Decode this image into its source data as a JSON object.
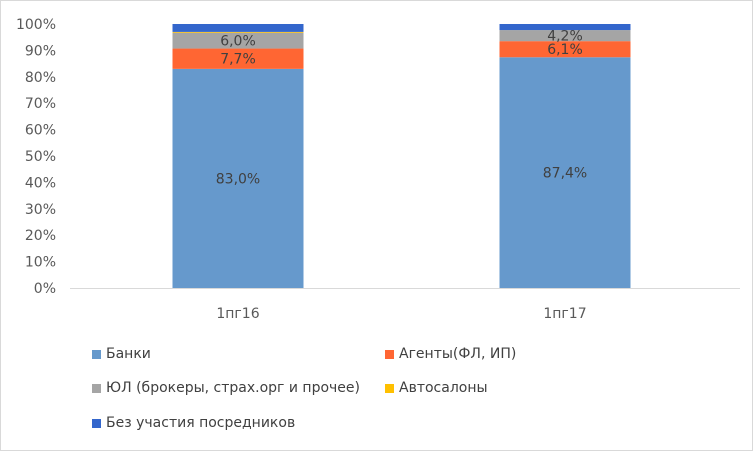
{
  "chart_data": {
    "type": "bar",
    "stacked": true,
    "categories": [
      "1пг16",
      "1пг17"
    ],
    "series": [
      {
        "name": "Банки",
        "values": [
          83.0,
          87.4
        ],
        "labels": [
          "83,0%",
          "87,4%"
        ],
        "color": "#6699cc"
      },
      {
        "name": "Агенты(ФЛ, ИП)",
        "values": [
          7.7,
          6.1
        ],
        "labels": [
          "7,7%",
          "6,1%"
        ],
        "color": "#ff6633"
      },
      {
        "name": "ЮЛ (брокеры, страх.орг и прочее)",
        "values": [
          6.0,
          4.2
        ],
        "labels": [
          "6,0%",
          "4,2%"
        ],
        "color": "#a5a5a5"
      },
      {
        "name": "Автосалоны",
        "values": [
          0.3,
          0.0
        ],
        "labels": [
          "",
          ""
        ],
        "color": "#ffc000"
      },
      {
        "name": "Без участия посредников",
        "values": [
          3.0,
          2.3
        ],
        "labels": [
          "",
          ""
        ],
        "color": "#3366cc"
      }
    ],
    "y_ticks": [
      "0%",
      "10%",
      "20%",
      "30%",
      "40%",
      "50%",
      "60%",
      "70%",
      "80%",
      "90%",
      "100%"
    ],
    "ylim": [
      0,
      100
    ],
    "grid": false,
    "legend_position": "bottom",
    "title": "",
    "xlabel": "",
    "ylabel": ""
  }
}
